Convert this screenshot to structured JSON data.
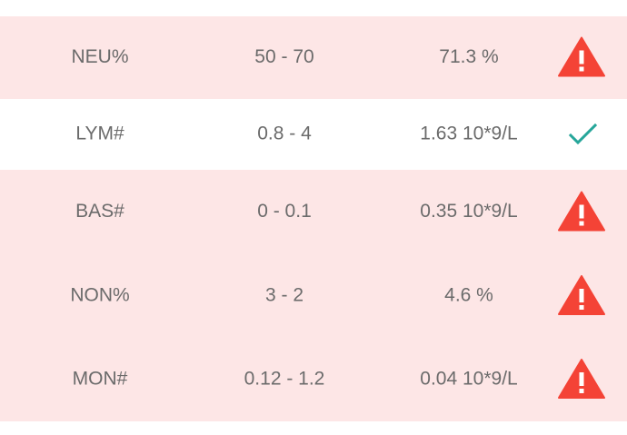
{
  "table": {
    "rows": [
      [
        "NEU%",
        "50 - 70",
        "71.3 %"
      ],
      [
        "LYM#",
        "0.8 - 4",
        "1.63 10*9/L"
      ],
      [
        "BAS#",
        "0 - 0.1",
        "0.35 10*9/L"
      ],
      [
        "NON%",
        "3 - 2",
        "4.6 %"
      ],
      [
        "MON#",
        "0.12 - 1.2",
        "0.04 10*9/L"
      ]
    ],
    "status": [
      "warning",
      "ok",
      "warning",
      "warning",
      "warning"
    ]
  }
}
